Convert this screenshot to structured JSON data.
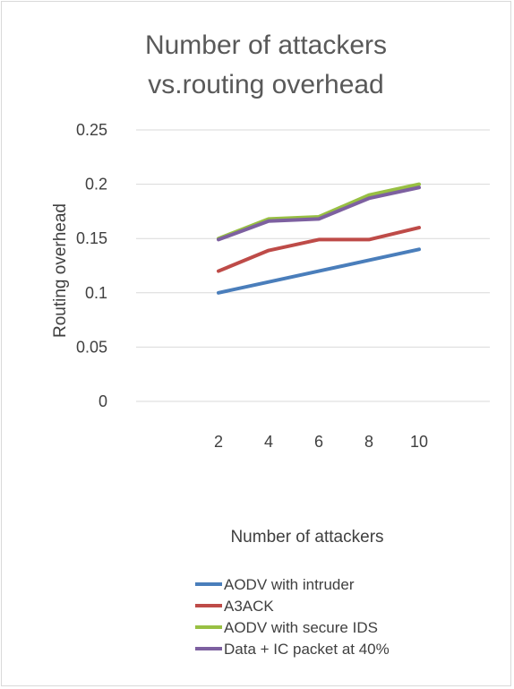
{
  "chart_data": {
    "type": "line",
    "title": [
      "Number of attackers",
      "vs.routing overhead"
    ],
    "xlabel": "Number of attackers",
    "ylabel": "Routing overhead",
    "categories": [
      "2",
      "4",
      "6",
      "8",
      "10"
    ],
    "ylim": [
      0,
      0.25
    ],
    "yticks": [
      "0",
      "0.05",
      "0.1",
      "0.15",
      "0.2",
      "0.25"
    ],
    "grid": true,
    "legend_position": "bottom",
    "series": [
      {
        "name": "AODV with intruder",
        "color": "#4a7ebb",
        "values": [
          0.1,
          0.11,
          0.12,
          0.13,
          0.14
        ]
      },
      {
        "name": "A3ACK",
        "color": "#be4b48",
        "values": [
          0.12,
          0.139,
          0.149,
          0.149,
          0.16
        ]
      },
      {
        "name": "AODV with secure IDS",
        "color": "#98c043",
        "values": [
          0.15,
          0.168,
          0.17,
          0.19,
          0.2
        ]
      },
      {
        "name": "Data + IC packet at 40%",
        "color": "#7d60a0",
        "values": [
          0.149,
          0.166,
          0.168,
          0.187,
          0.197
        ]
      }
    ]
  }
}
